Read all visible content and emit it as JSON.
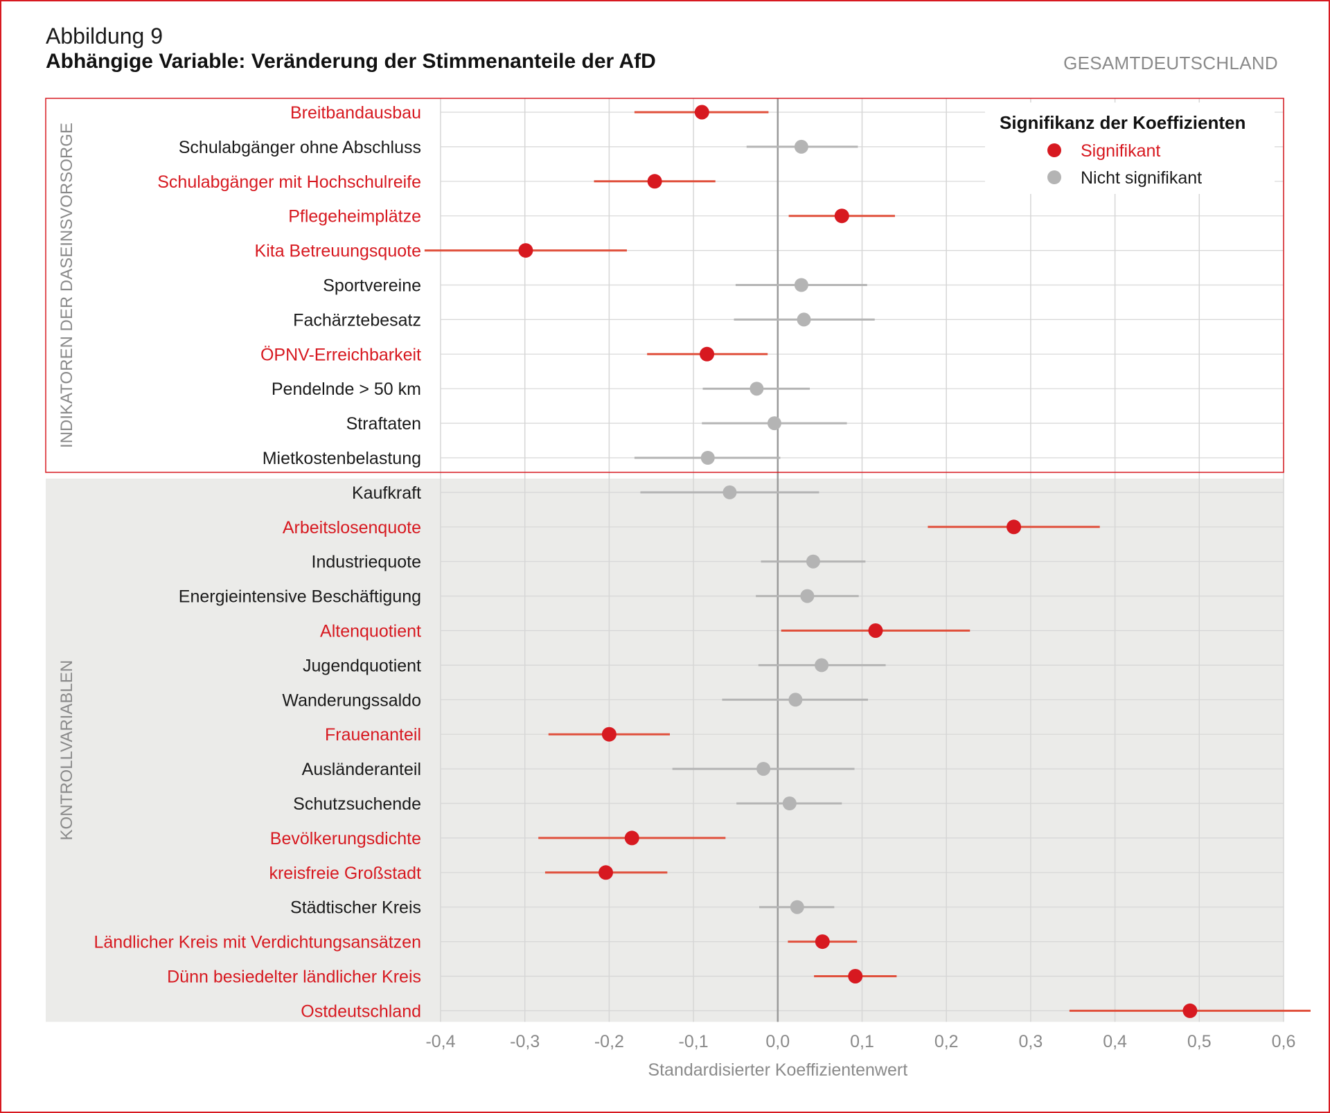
{
  "figure": {
    "label": "Abbildung 9",
    "title": "Abhängige Variable: Veränderung der Stimmenanteile der AfD",
    "region": "GESAMTDEUTSCHLAND"
  },
  "colors": {
    "significant": "#d71920",
    "significant_line": "#e0503c",
    "not_significant": "#b4b4b4",
    "control_background": "#ebebe9",
    "grid": "#d6d6d6",
    "zero_line": "#9a9a9a"
  },
  "chart_data": {
    "type": "forest",
    "xlabel": "Standardisierter Koeffizientenwert",
    "xlim": [
      -0.4,
      0.6
    ],
    "x_ticks": [
      -0.4,
      -0.3,
      -0.2,
      -0.1,
      0.0,
      0.1,
      0.2,
      0.3,
      0.4,
      0.5,
      0.6
    ],
    "x_tick_labels": [
      "-0,4",
      "-0,3",
      "-0,2",
      "-0,1",
      "0,0",
      "0,1",
      "0,2",
      "0,3",
      "0,4",
      "0,5",
      "0,6"
    ],
    "grid": true,
    "legend": {
      "title": "Signifikanz der Koeffizienten",
      "position": "top-right",
      "entries": [
        "Signifikant",
        "Nicht signifikant"
      ]
    },
    "groups": [
      {
        "label": "INDIKATOREN DER DASEINSVORSORGE",
        "items": [
          {
            "label": "Breitbandausbau",
            "estimate": -0.09,
            "low": -0.17,
            "high": -0.011,
            "significant": true
          },
          {
            "label": "Schulabgänger ohne Abschluss",
            "estimate": 0.028,
            "low": -0.037,
            "high": 0.095,
            "significant": false
          },
          {
            "label": "Schulabgänger mit Hochschulreife",
            "estimate": -0.146,
            "low": -0.218,
            "high": -0.074,
            "significant": true
          },
          {
            "label": "Pflegeheimplätze",
            "estimate": 0.076,
            "low": 0.013,
            "high": 0.139,
            "significant": true
          },
          {
            "label": "Kita Betreuungsquote",
            "estimate": -0.299,
            "low": -0.419,
            "high": -0.179,
            "significant": true
          },
          {
            "label": "Sportvereine",
            "estimate": 0.028,
            "low": -0.05,
            "high": 0.106,
            "significant": false
          },
          {
            "label": "Fachärztebesatz",
            "estimate": 0.031,
            "low": -0.052,
            "high": 0.115,
            "significant": false
          },
          {
            "label": "ÖPNV-Erreichbarkeit",
            "estimate": -0.084,
            "low": -0.155,
            "high": -0.012,
            "significant": true
          },
          {
            "label": "Pendelnde > 50 km",
            "estimate": -0.025,
            "low": -0.089,
            "high": 0.038,
            "significant": false
          },
          {
            "label": "Straftaten",
            "estimate": -0.004,
            "low": -0.09,
            "high": 0.082,
            "significant": false
          },
          {
            "label": "Mietkostenbelastung",
            "estimate": -0.083,
            "low": -0.17,
            "high": 0.003,
            "significant": false
          }
        ]
      },
      {
        "label": "KONTROLLVARIABLEN",
        "items": [
          {
            "label": "Kaufkraft",
            "estimate": -0.057,
            "low": -0.163,
            "high": 0.049,
            "significant": false
          },
          {
            "label": "Arbeitslosenquote",
            "estimate": 0.28,
            "low": 0.178,
            "high": 0.382,
            "significant": true
          },
          {
            "label": "Industriequote",
            "estimate": 0.042,
            "low": -0.02,
            "high": 0.104,
            "significant": false
          },
          {
            "label": "Energieintensive Beschäftigung",
            "estimate": 0.035,
            "low": -0.026,
            "high": 0.096,
            "significant": false
          },
          {
            "label": "Altenquotient",
            "estimate": 0.116,
            "low": 0.004,
            "high": 0.228,
            "significant": true
          },
          {
            "label": "Jugendquotient",
            "estimate": 0.052,
            "low": -0.023,
            "high": 0.128,
            "significant": false
          },
          {
            "label": "Wanderungssaldo",
            "estimate": 0.021,
            "low": -0.066,
            "high": 0.107,
            "significant": false
          },
          {
            "label": "Frauenanteil",
            "estimate": -0.2,
            "low": -0.272,
            "high": -0.128,
            "significant": true
          },
          {
            "label": "Ausländeranteil",
            "estimate": -0.017,
            "low": -0.125,
            "high": 0.091,
            "significant": false
          },
          {
            "label": "Schutzsuchende",
            "estimate": 0.014,
            "low": -0.049,
            "high": 0.076,
            "significant": false
          },
          {
            "label": "Bevölkerungsdichte",
            "estimate": -0.173,
            "low": -0.284,
            "high": -0.062,
            "significant": true
          },
          {
            "label": "kreisfreie Großstadt",
            "estimate": -0.204,
            "low": -0.276,
            "high": -0.131,
            "significant": true
          },
          {
            "label": "Städtischer Kreis",
            "estimate": 0.023,
            "low": -0.022,
            "high": 0.067,
            "significant": false
          },
          {
            "label": "Ländlicher Kreis mit Verdichtungsansätzen",
            "estimate": 0.053,
            "low": 0.012,
            "high": 0.094,
            "significant": true
          },
          {
            "label": "Dünn besiedelter ländlicher Kreis",
            "estimate": 0.092,
            "low": 0.043,
            "high": 0.141,
            "significant": true
          },
          {
            "label": "Ostdeutschland",
            "estimate": 0.489,
            "low": 0.346,
            "high": 0.632,
            "significant": true
          }
        ]
      }
    ]
  }
}
